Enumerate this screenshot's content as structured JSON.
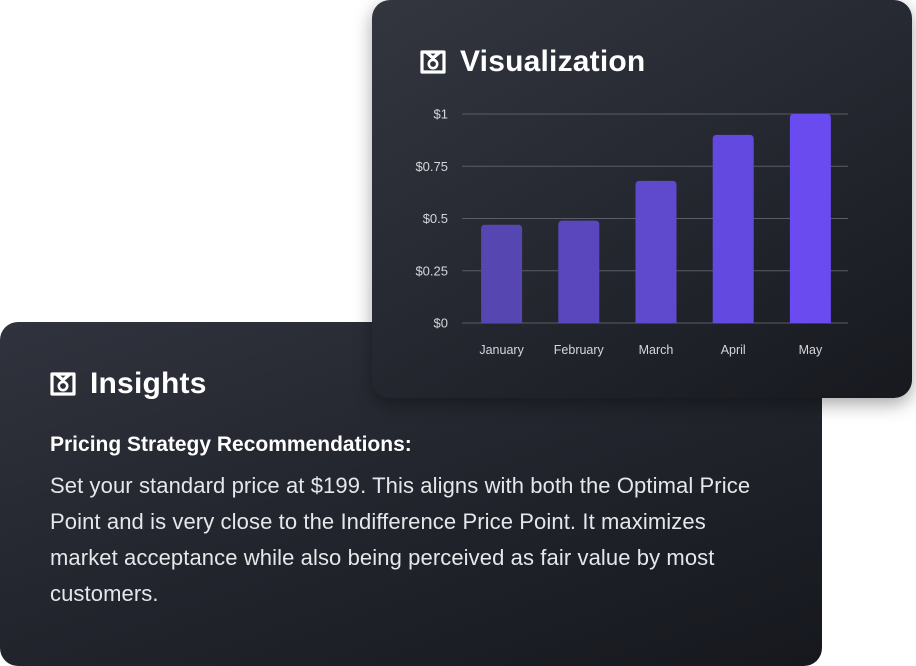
{
  "visualization": {
    "title": "Visualization",
    "icon": "brand-logo-icon"
  },
  "insights": {
    "title": "Insights",
    "icon": "brand-logo-icon",
    "heading": "Pricing Strategy Recommendations:",
    "text": "Set your standard price at $199. This aligns with both the Optimal Price Point and is very close to the Indifference Price Point. It maximizes market acceptance while also being perceived as fair value by most customers."
  },
  "chart_data": {
    "type": "bar",
    "categories": [
      "January",
      "February",
      "March",
      "April",
      "May"
    ],
    "values": [
      0.47,
      0.49,
      0.68,
      0.9,
      1.0
    ],
    "title": "",
    "xlabel": "",
    "ylabel": "",
    "ylim": [
      0,
      1
    ],
    "yticks": [
      {
        "value": 0,
        "label": "$0"
      },
      {
        "value": 0.25,
        "label": "$0.25"
      },
      {
        "value": 0.5,
        "label": "$0.5"
      },
      {
        "value": 0.75,
        "label": "$0.75"
      },
      {
        "value": 1,
        "label": "$1"
      }
    ],
    "grid": true,
    "bar_colors": [
      "#5646b2",
      "#5a46bd",
      "#5f49cc",
      "#6449e0",
      "#694bef"
    ],
    "grid_color": "#5a5d66"
  }
}
